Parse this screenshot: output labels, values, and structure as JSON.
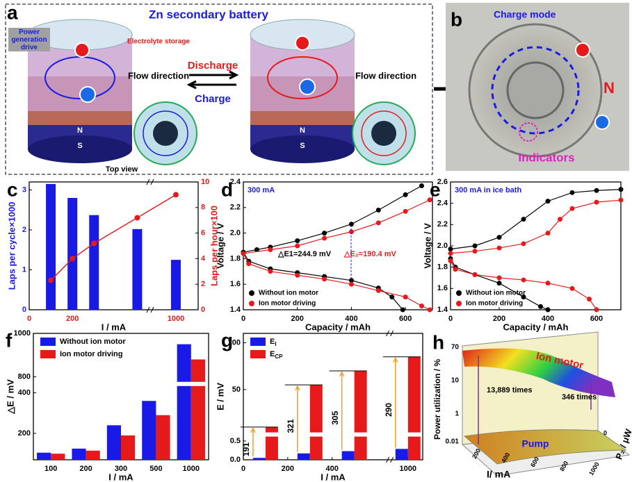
{
  "panel_letters": [
    "a",
    "b",
    "c",
    "d",
    "e",
    "f",
    "g",
    "h"
  ],
  "panel_a": {
    "title": "Zn secondary battery",
    "drive": "Power generation drive",
    "storage": "Electrolyte storage",
    "flow_left": "Flow direction",
    "flow_right": "Flow direction",
    "discharge": "Discharge",
    "charge": "Charge",
    "n_left": "N",
    "s_left": "S",
    "n_right": "N",
    "s_right": "S",
    "top_view": "Top view"
  },
  "panel_b": {
    "mode": "Charge mode",
    "n": "N",
    "indicators": "Indicators"
  },
  "panel_h": {
    "ylabel": "Power utilization / %",
    "xlabel": "I/ mA",
    "zlabel": "P₂ / μW",
    "top_surface": "Ion motor",
    "bottom_surface": "Pump",
    "ratio_left": "13,889 times",
    "ratio_right": "346 times",
    "yticks": [
      70,
      10,
      1,
      0.01
    ],
    "xticks": [
      200,
      400,
      600,
      800,
      1000
    ],
    "zticks": [
      0
    ]
  },
  "chart_data": [
    {
      "type": "bar",
      "xlabel": "I / mA",
      "ylabel": "Laps per cycle×1000",
      "y2label": "Laps per hour×100",
      "x": [
        100,
        200,
        300,
        500,
        1000
      ],
      "xlim": [
        0,
        1100
      ],
      "xbreak": [
        550,
        900
      ],
      "xticks": [
        0,
        200,
        1000
      ],
      "ylim": [
        0,
        3.2
      ],
      "yticks": [
        0,
        1,
        2,
        3
      ],
      "y2lim": [
        0,
        10
      ],
      "y2ticks": [
        0,
        2,
        4,
        6,
        8,
        10
      ],
      "series": [
        {
          "color": "#1a1ae6",
          "values": [
            3.15,
            2.8,
            2.37,
            2.02,
            1.25
          ]
        },
        {
          "color": "#e61a1a",
          "type": "line",
          "axis": "y2",
          "values": [
            2.3,
            4.0,
            5.2,
            7.2,
            9.0
          ]
        }
      ]
    },
    {
      "type": "line",
      "xlabel": "Capacity / mAh",
      "ylabel": "Voltage / V",
      "annotations": [
        "300 mA",
        "△E1=244.9 mV",
        "△E₂=190.4 mV"
      ],
      "xlim": [
        0,
        700
      ],
      "xticks": [
        0,
        200,
        400,
        600
      ],
      "ylim": [
        1.4,
        2.4
      ],
      "yticks": [
        1.4,
        1.6,
        1.8,
        {
          "value": 2,
          "label": "2.0"
        },
        2.2,
        2.4
      ],
      "series": [
        {
          "name": "Without ion motor",
          "color": "#000000",
          "x": [
            0,
            50,
            100,
            200,
            300,
            400,
            500,
            600,
            660
          ],
          "values": [
            1.85,
            1.87,
            1.89,
            1.94,
            2.0,
            2.07,
            2.18,
            2.3,
            2.37
          ]
        },
        {
          "name": "Ion motor driving",
          "color": "#e61a1a",
          "x": [
            0,
            100,
            200,
            300,
            400,
            500,
            600,
            690
          ],
          "values": [
            1.84,
            1.87,
            1.9,
            1.96,
            2.01,
            2.08,
            2.17,
            2.26
          ]
        },
        {
          "color": "#000000",
          "x": [
            0,
            20,
            100,
            200,
            300,
            400,
            500,
            550,
            590
          ],
          "values": [
            1.85,
            1.78,
            1.72,
            1.69,
            1.66,
            1.63,
            1.57,
            1.5,
            1.4
          ]
        },
        {
          "color": "#e61a1a",
          "x": [
            0,
            20,
            100,
            200,
            300,
            400,
            500,
            600,
            660,
            690
          ],
          "values": [
            1.84,
            1.76,
            1.7,
            1.67,
            1.64,
            1.6,
            1.55,
            1.5,
            1.43,
            1.4
          ]
        }
      ]
    },
    {
      "type": "line",
      "xlabel": "Capacity / mAh",
      "ylabel": "Voltage / V",
      "annotations": [
        "300 mA in ice bath"
      ],
      "xlim": [
        0,
        700
      ],
      "xticks": [
        0,
        200,
        400,
        600
      ],
      "ylim": [
        1.4,
        2.6
      ],
      "yticks": [
        1.4,
        1.6,
        1.8,
        {
          "value": 2,
          "label": "2.0"
        },
        2.2,
        2.4,
        2.6
      ],
      "series": [
        {
          "name": "Without ion motor",
          "color": "#000000",
          "x": [
            0,
            100,
            200,
            300,
            400,
            500,
            600,
            700
          ],
          "values": [
            1.97,
            2.0,
            2.08,
            2.25,
            2.42,
            2.5,
            2.52,
            2.53
          ]
        },
        {
          "name": "Ion motor driving",
          "color": "#e61a1a",
          "x": [
            0,
            100,
            200,
            300,
            400,
            450,
            500,
            600,
            700
          ],
          "values": [
            1.93,
            1.95,
            1.98,
            2.02,
            2.12,
            2.25,
            2.35,
            2.41,
            2.43
          ]
        },
        {
          "color": "#000000",
          "x": [
            0,
            20,
            100,
            200,
            300,
            370,
            400
          ],
          "values": [
            1.88,
            1.8,
            1.73,
            1.65,
            1.52,
            1.43,
            1.4
          ]
        },
        {
          "color": "#e61a1a",
          "x": [
            0,
            20,
            100,
            200,
            300,
            400,
            500,
            570,
            600
          ],
          "values": [
            1.86,
            1.78,
            1.73,
            1.7,
            1.68,
            1.65,
            1.6,
            1.5,
            1.4
          ]
        }
      ]
    },
    {
      "type": "bar",
      "xlabel": "I / mA",
      "ylabel": "△E / mV",
      "categories": [
        "100",
        "200",
        "300",
        "500",
        "1000"
      ],
      "ylim": [
        70,
        1000
      ],
      "ybreak": [
        430,
        780
      ],
      "yticks": [
        200,
        400,
        800,
        1000
      ],
      "series": [
        {
          "name": "Without ion motor",
          "color": "#1a1ae6",
          "values": [
            105,
            125,
            240,
            360,
            950
          ]
        },
        {
          "name": "Ion motor driving",
          "color": "#e61a1a",
          "values": [
            100,
            115,
            190,
            290,
            880
          ]
        }
      ]
    },
    {
      "type": "bar",
      "xlabel": "I / mA",
      "ylabel": "E / mV",
      "x": [
        100,
        300,
        500,
        1000
      ],
      "xlim": [
        0,
        1100
      ],
      "xbreak": [
        650,
        900
      ],
      "xticks": [
        0,
        200,
        400,
        1000
      ],
      "ylim": [
        0,
        110
      ],
      "ybreak": [
        0.6,
        5
      ],
      "yticks": [
        {
          "value": 0,
          "label": "0.0"
        },
        0.5,
        50,
        100
      ],
      "ratios": [
        191,
        321,
        305,
        290
      ],
      "series": [
        {
          "name": "E",
          "subscript": "I",
          "color": "#1a1ae6",
          "values": [
            0.05,
            0.17,
            0.23,
            0.29
          ]
        },
        {
          "name": "E",
          "subscript": "CP",
          "color": "#e61a1a",
          "values": [
            10,
            55,
            70,
            85
          ]
        }
      ]
    }
  ]
}
